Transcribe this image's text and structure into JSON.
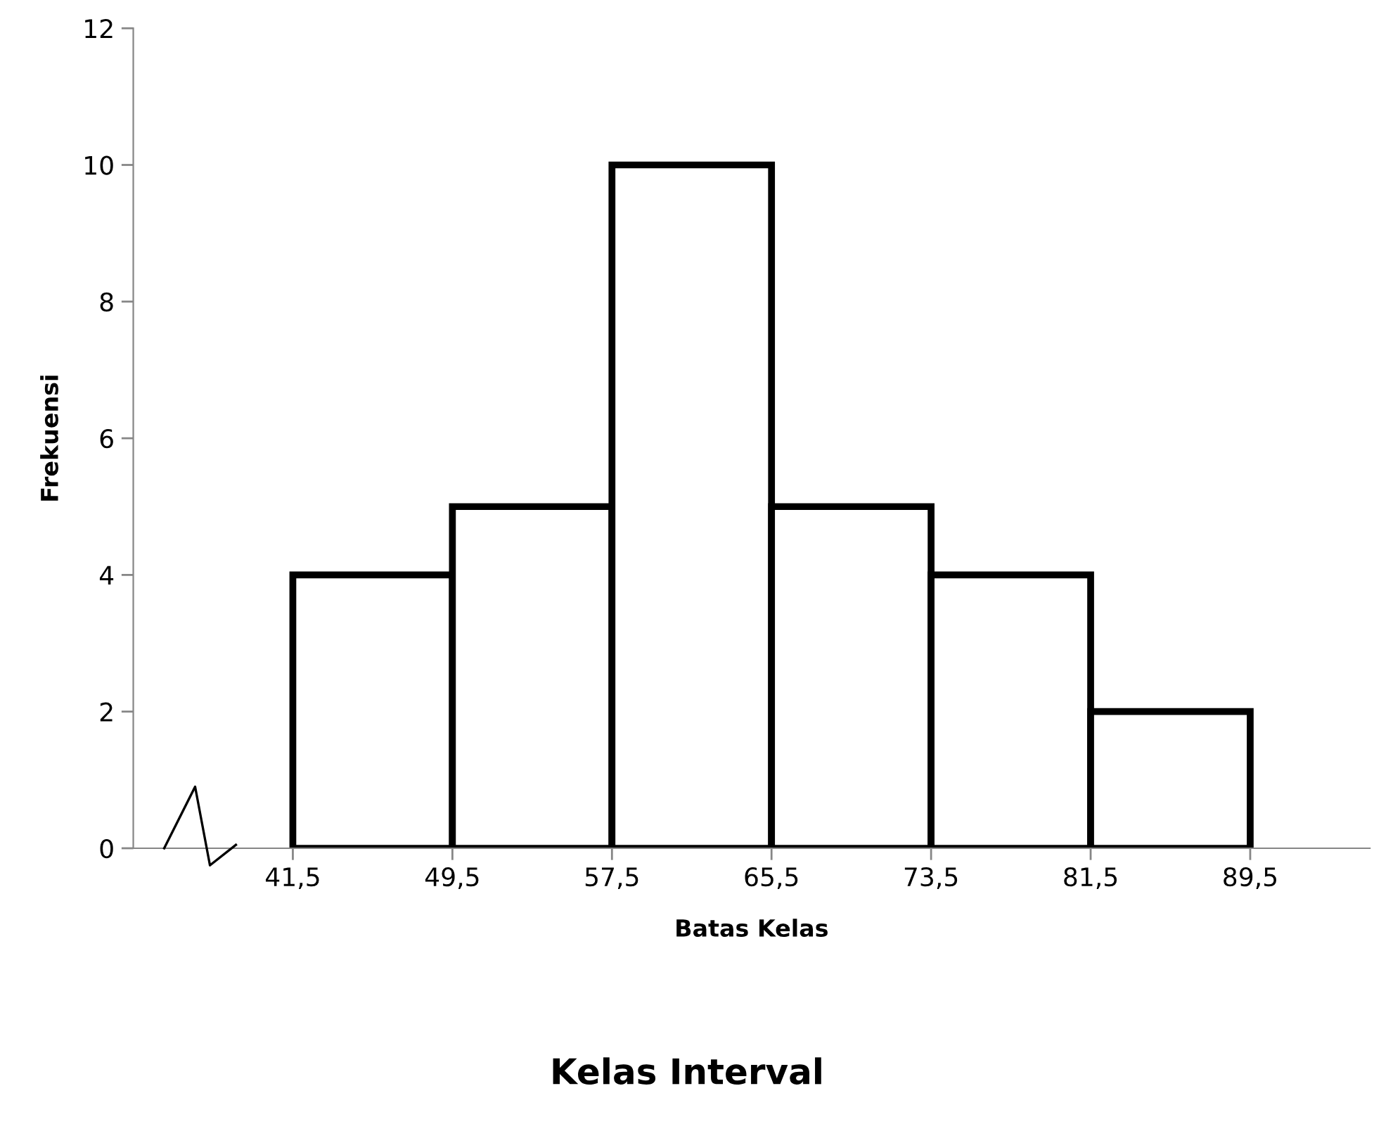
{
  "chart_data": {
    "type": "histogram",
    "title": "Kelas Interval",
    "xlabel": "Batas Kelas",
    "ylabel": "Frekuensi",
    "bins": [
      41.5,
      49.5,
      57.5,
      65.5,
      73.5,
      81.5,
      89.5
    ],
    "values": [
      4,
      5,
      10,
      5,
      4,
      2
    ],
    "color": "#ffffff",
    "xlim": [
      33.5,
      95.5
    ],
    "xticks": [
      {
        "value": 41.5,
        "label": "41,5"
      },
      {
        "value": 49.5,
        "label": "49,5"
      },
      {
        "value": 57.5,
        "label": "57,5"
      },
      {
        "value": 65.5,
        "label": "65,5"
      },
      {
        "value": 73.5,
        "label": "73,5"
      },
      {
        "value": 81.5,
        "label": "81,5"
      },
      {
        "value": 89.5,
        "label": "89,5"
      }
    ],
    "ylim": [
      0,
      12
    ],
    "yticks": [
      0,
      2,
      4,
      6,
      8,
      10,
      12
    ],
    "grid": false
  }
}
